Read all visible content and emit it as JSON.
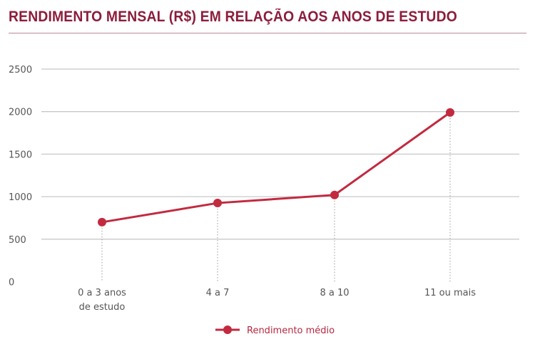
{
  "title": "RENDIMENTO MENSAL (R$) EM RELAÇÃO AOS ANOS DE ESTUDO",
  "chart_data": {
    "type": "line",
    "title": "RENDIMENTO MENSAL (R$) EM RELAÇÃO AOS ANOS DE ESTUDO",
    "categories": [
      [
        "0 a 3 anos",
        "de estudo"
      ],
      [
        "4 a 7"
      ],
      [
        "8 a 10"
      ],
      [
        "11 ou mais"
      ]
    ],
    "series": [
      {
        "name": "Rendimento médio",
        "values": [
          700,
          925,
          1020,
          1990
        ],
        "color": "#c22a40"
      }
    ],
    "ylim": [
      0,
      2500
    ],
    "yticks": [
      0,
      500,
      1000,
      1500,
      2000,
      2500
    ],
    "grid": true,
    "legend": "bottom-center",
    "xlabel": "",
    "ylabel": ""
  }
}
